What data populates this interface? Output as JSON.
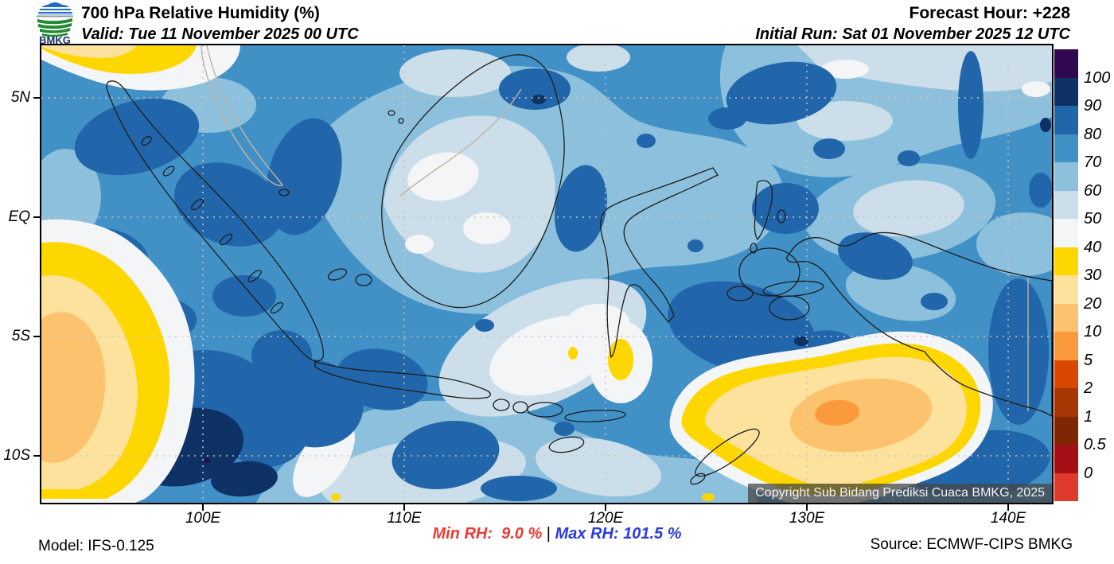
{
  "header": {
    "logo_text": "BMKG",
    "title": "700 hPa Relative Humidity (%)",
    "valid": "Valid: Tue 11 November 2025 00 UTC",
    "forecast_hour": "Forecast Hour: +228",
    "initial_run": "Initial Run: Sat 01 November 2025 12 UTC"
  },
  "map": {
    "copyright": "Copyright Sub Bidang Prediksi Cuaca BMKG, 2025"
  },
  "axes": {
    "lat_ticks": [
      "5N",
      "EQ",
      "5S",
      "10S"
    ],
    "lon_ticks": [
      "100E",
      "110E",
      "120E",
      "130E",
      "140E"
    ]
  },
  "colorbar": {
    "tick_labels_top_down": [
      "100",
      "90",
      "80",
      "70",
      "60",
      "50",
      "40",
      "30",
      "20",
      "10",
      "5",
      "2",
      "1",
      "0.5",
      "0"
    ],
    "band_colors_top_down": [
      "#30084f",
      "#0e3166",
      "#2166ab",
      "#4191c7",
      "#8cc0dc",
      "#cbdeea",
      "#f3f5f6",
      "#ffd700",
      "#fce29c",
      "#fdc26d",
      "#fb9a3c",
      "#d94801",
      "#a63603",
      "#7f2704",
      "#a50f15",
      "#e0392e"
    ]
  },
  "footer": {
    "model": "Model: IFS-0.125",
    "min_rh": "Min RH:  9.0 %",
    "separator": " | ",
    "max_rh": "Max RH: 101.5 %",
    "source": "Source: ECMWF-CIPS BMKG",
    "min_color": "#ee3a33",
    "max_color": "#2a3cdc"
  },
  "chart_data": {
    "type": "heatmap",
    "title": "700 hPa Relative Humidity (%)",
    "valid_time": "Tue 11 November 2025 00 UTC",
    "initial_run": "Sat 01 November 2025 12 UTC",
    "forecast_hour": "+228",
    "model": "IFS-0.125",
    "source": "ECMWF-CIPS BMKG",
    "region": {
      "lon_ticks_deg_e": [
        100,
        110,
        120,
        130,
        140
      ],
      "lat_ticks": [
        "5N",
        "EQ",
        "5S",
        "10S"
      ]
    },
    "contour_levels_percent": [
      0,
      0.5,
      1,
      2,
      5,
      10,
      20,
      30,
      40,
      50,
      60,
      70,
      80,
      90,
      100
    ],
    "level_colors_low_to_high": [
      "#e0392e",
      "#a50f15",
      "#7f2704",
      "#a63603",
      "#d94801",
      "#fb9a3c",
      "#fdc26d",
      "#fce29c",
      "#ffd700",
      "#f3f5f6",
      "#cbdeea",
      "#8cc0dc",
      "#4191c7",
      "#2166ab",
      "#0e3166",
      "#30084f"
    ],
    "min_rh_percent": 9.0,
    "max_rh_percent": 101.5,
    "legend_position": "right",
    "grid": "dotted"
  }
}
